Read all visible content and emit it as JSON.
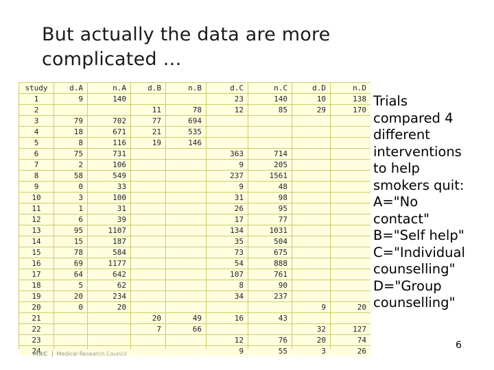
{
  "title": {
    "line1": "But actually the data are more",
    "line2": "complicated …"
  },
  "table": {
    "headers": [
      "study",
      "d.A",
      "n.A",
      "d.B",
      "n.B",
      "d.C",
      "n.C",
      "d.D",
      "n.D"
    ],
    "rows": [
      [
        "1",
        "9",
        "140",
        "",
        "",
        "23",
        "140",
        "10",
        "138"
      ],
      [
        "2",
        "",
        "",
        "11",
        "78",
        "12",
        "85",
        "29",
        "170"
      ],
      [
        "3",
        "79",
        "702",
        "77",
        "694",
        "",
        "",
        "",
        ""
      ],
      [
        "4",
        "18",
        "671",
        "21",
        "535",
        "",
        "",
        "",
        ""
      ],
      [
        "5",
        "8",
        "116",
        "19",
        "146",
        "",
        "",
        "",
        ""
      ],
      [
        "6",
        "75",
        "731",
        "",
        "",
        "363",
        "714",
        "",
        ""
      ],
      [
        "7",
        "2",
        "106",
        "",
        "",
        "9",
        "205",
        "",
        ""
      ],
      [
        "8",
        "58",
        "549",
        "",
        "",
        "237",
        "1561",
        "",
        ""
      ],
      [
        "9",
        "0",
        "33",
        "",
        "",
        "9",
        "48",
        "",
        ""
      ],
      [
        "10",
        "3",
        "100",
        "",
        "",
        "31",
        "98",
        "",
        ""
      ],
      [
        "11",
        "1",
        "31",
        "",
        "",
        "26",
        "95",
        "",
        ""
      ],
      [
        "12",
        "6",
        "39",
        "",
        "",
        "17",
        "77",
        "",
        ""
      ],
      [
        "13",
        "95",
        "1107",
        "",
        "",
        "134",
        "1031",
        "",
        ""
      ],
      [
        "14",
        "15",
        "187",
        "",
        "",
        "35",
        "504",
        "",
        ""
      ],
      [
        "15",
        "78",
        "584",
        "",
        "",
        "73",
        "675",
        "",
        ""
      ],
      [
        "16",
        "69",
        "1177",
        "",
        "",
        "54",
        "888",
        "",
        ""
      ],
      [
        "17",
        "64",
        "642",
        "",
        "",
        "107",
        "761",
        "",
        ""
      ],
      [
        "18",
        "5",
        "62",
        "",
        "",
        "8",
        "90",
        "",
        ""
      ],
      [
        "19",
        "20",
        "234",
        "",
        "",
        "34",
        "237",
        "",
        ""
      ],
      [
        "20",
        "0",
        "20",
        "",
        "",
        "",
        "",
        "9",
        "20"
      ],
      [
        "21",
        "",
        "",
        "20",
        "49",
        "16",
        "43",
        "",
        ""
      ],
      [
        "22",
        "",
        "",
        "7",
        "66",
        "",
        "",
        "32",
        "127"
      ],
      [
        "23",
        "",
        "",
        "",
        "",
        "12",
        "76",
        "20",
        "74"
      ],
      [
        "24",
        "",
        "",
        "",
        "",
        "9",
        "55",
        "3",
        "26"
      ]
    ]
  },
  "side": {
    "lines": [
      "Trials",
      "compared 4",
      "different",
      "interventions",
      "to help",
      "smokers quit:",
      "A=\"No",
      "contact\"",
      "B=\"Self help\"",
      "C=\"Individual",
      "counselling\"",
      "D=\"Group",
      "counselling\""
    ]
  },
  "page_number": "6",
  "footer": {
    "org_short": "MRC",
    "org_name": "Medical Research Council"
  },
  "colors": {
    "cell_bg": "#ffffe0",
    "grid": "#cccc66"
  }
}
